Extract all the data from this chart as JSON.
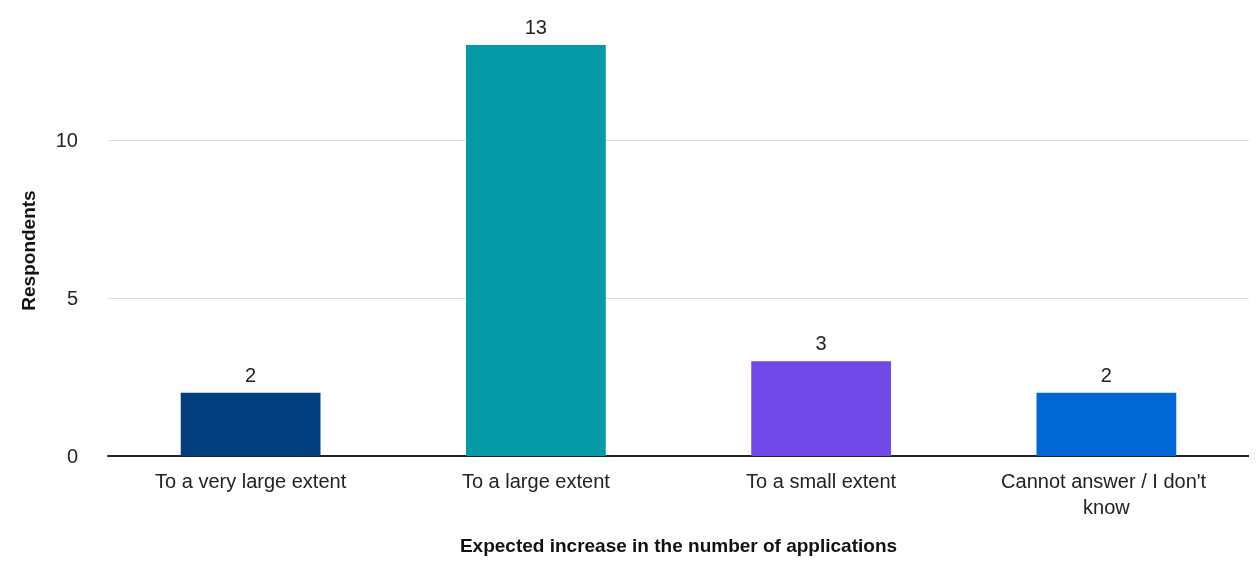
{
  "chart_data": {
    "type": "bar",
    "xlabel": "Expected increase in the number of applications",
    "ylabel": "Respondents",
    "categories": [
      "To a very large extent",
      "To a large extent",
      "To a small extent",
      "Cannot answer / I don't know"
    ],
    "values": [
      2,
      13,
      3,
      2
    ],
    "colors": [
      "#023e7d",
      "#0399a6",
      "#7049e8",
      "#0067d4"
    ],
    "ylim": [
      0,
      13
    ],
    "yticks": [
      0,
      5,
      10
    ],
    "grid": "y",
    "data_labels": true
  }
}
